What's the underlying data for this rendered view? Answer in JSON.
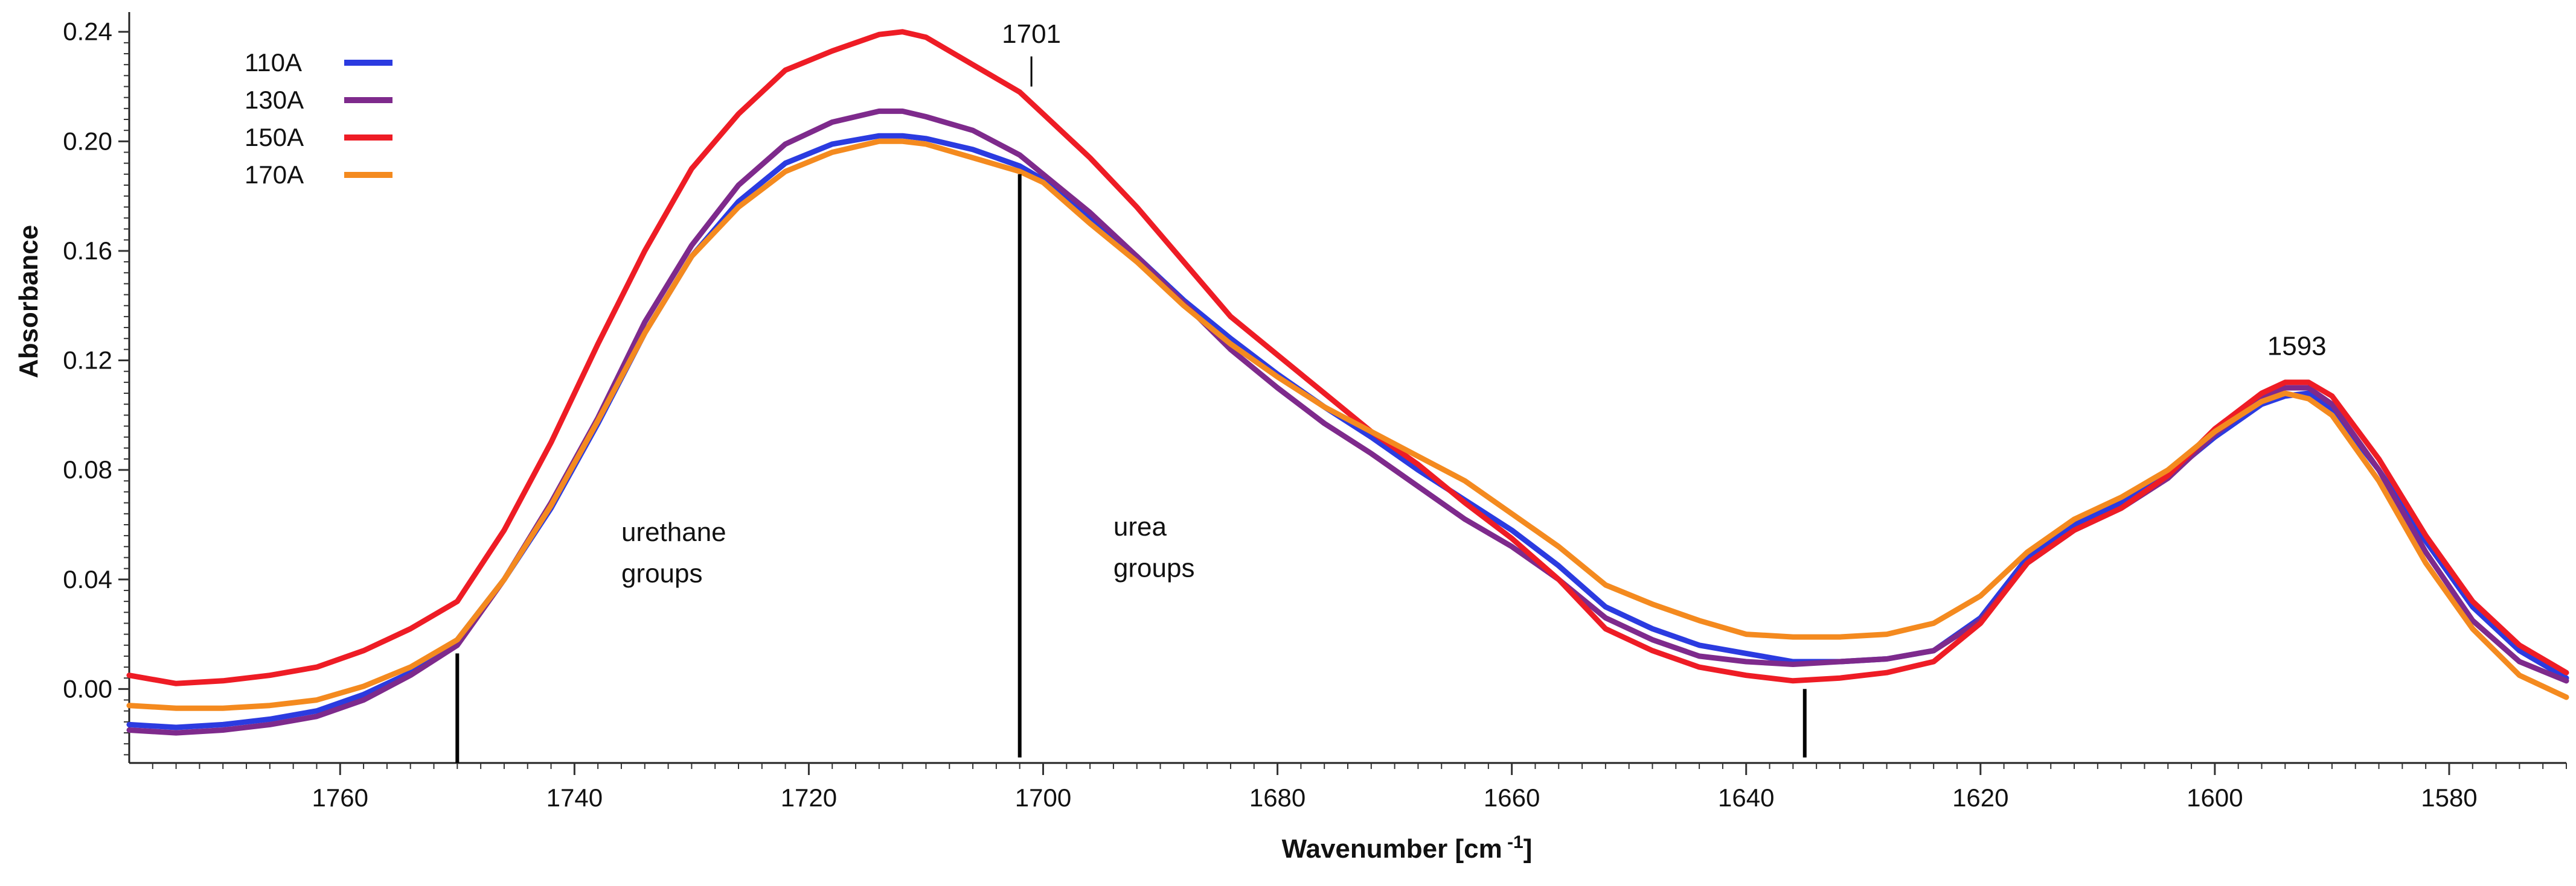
{
  "chart_data": {
    "type": "line",
    "title": "",
    "xlabel_main": "Wavenumber [cm",
    "xlabel_sup": " -1",
    "xlabel_close": "]",
    "ylabel": "Absorbance",
    "xlim": [
      1778,
      1570
    ],
    "ylim": [
      -0.027,
      0.245
    ],
    "x_ticks": [
      1760,
      1740,
      1720,
      1700,
      1680,
      1660,
      1640,
      1620,
      1600,
      1580
    ],
    "y_ticks": [
      "0.24",
      "0.20",
      "0.16",
      "0.12",
      "0.08",
      "0.04",
      "0.00"
    ],
    "y_tick_values": [
      0.24,
      0.2,
      0.16,
      0.12,
      0.08,
      0.04,
      0.0
    ],
    "x": [
      1778,
      1774,
      1770,
      1766,
      1762,
      1758,
      1754,
      1750,
      1746,
      1742,
      1738,
      1734,
      1730,
      1726,
      1722,
      1718,
      1714,
      1712,
      1710,
      1706,
      1702,
      1700,
      1696,
      1692,
      1688,
      1684,
      1680,
      1676,
      1672,
      1668,
      1664,
      1660,
      1656,
      1652,
      1648,
      1644,
      1640,
      1636,
      1632,
      1628,
      1624,
      1620,
      1616,
      1612,
      1608,
      1604,
      1600,
      1596,
      1594,
      1592,
      1590,
      1586,
      1582,
      1578,
      1574,
      1570
    ],
    "series": [
      {
        "name": "110A",
        "color": "#2b3be0",
        "values": [
          -0.013,
          -0.014,
          -0.013,
          -0.011,
          -0.008,
          -0.002,
          0.006,
          0.018,
          0.04,
          0.066,
          0.097,
          0.13,
          0.158,
          0.178,
          0.192,
          0.199,
          0.202,
          0.202,
          0.201,
          0.197,
          0.191,
          0.186,
          0.172,
          0.158,
          0.142,
          0.128,
          0.115,
          0.103,
          0.092,
          0.08,
          0.069,
          0.058,
          0.045,
          0.03,
          0.022,
          0.016,
          0.013,
          0.01,
          0.01,
          0.011,
          0.014,
          0.026,
          0.048,
          0.06,
          0.068,
          0.078,
          0.092,
          0.104,
          0.107,
          0.108,
          0.102,
          0.08,
          0.054,
          0.03,
          0.014,
          0.004
        ]
      },
      {
        "name": "130A",
        "color": "#7e2a8c",
        "values": [
          -0.015,
          -0.016,
          -0.015,
          -0.013,
          -0.01,
          -0.004,
          0.005,
          0.016,
          0.04,
          0.068,
          0.099,
          0.134,
          0.162,
          0.184,
          0.199,
          0.207,
          0.211,
          0.211,
          0.209,
          0.204,
          0.195,
          0.188,
          0.174,
          0.158,
          0.141,
          0.124,
          0.11,
          0.097,
          0.086,
          0.074,
          0.062,
          0.052,
          0.04,
          0.026,
          0.018,
          0.012,
          0.01,
          0.009,
          0.01,
          0.011,
          0.014,
          0.025,
          0.046,
          0.058,
          0.066,
          0.077,
          0.093,
          0.106,
          0.11,
          0.11,
          0.104,
          0.08,
          0.05,
          0.025,
          0.01,
          0.003
        ]
      },
      {
        "name": "150A",
        "color": "#ee1c25",
        "values": [
          0.005,
          0.002,
          0.003,
          0.005,
          0.008,
          0.014,
          0.022,
          0.032,
          0.058,
          0.09,
          0.126,
          0.16,
          0.19,
          0.21,
          0.226,
          0.233,
          0.239,
          0.24,
          0.238,
          0.228,
          0.218,
          0.21,
          0.194,
          0.176,
          0.156,
          0.136,
          0.122,
          0.108,
          0.094,
          0.082,
          0.068,
          0.055,
          0.04,
          0.022,
          0.014,
          0.008,
          0.005,
          0.003,
          0.004,
          0.006,
          0.01,
          0.024,
          0.046,
          0.058,
          0.066,
          0.078,
          0.095,
          0.108,
          0.112,
          0.112,
          0.107,
          0.084,
          0.056,
          0.032,
          0.016,
          0.006
        ]
      },
      {
        "name": "170A",
        "color": "#f48a1f",
        "values": [
          -0.006,
          -0.007,
          -0.007,
          -0.006,
          -0.004,
          0.001,
          0.008,
          0.018,
          0.04,
          0.067,
          0.098,
          0.13,
          0.158,
          0.176,
          0.189,
          0.196,
          0.2,
          0.2,
          0.199,
          0.194,
          0.189,
          0.185,
          0.17,
          0.156,
          0.14,
          0.126,
          0.114,
          0.103,
          0.094,
          0.085,
          0.076,
          0.064,
          0.052,
          0.038,
          0.031,
          0.025,
          0.02,
          0.019,
          0.019,
          0.02,
          0.024,
          0.034,
          0.05,
          0.062,
          0.07,
          0.08,
          0.094,
          0.105,
          0.108,
          0.106,
          0.1,
          0.076,
          0.046,
          0.022,
          0.005,
          -0.003
        ]
      }
    ],
    "markers": [
      {
        "x": 1750,
        "y_top": 0.013,
        "y_bottom": -0.027
      },
      {
        "x": 1702,
        "y_top": 0.188,
        "y_bottom": -0.025
      },
      {
        "x": 1635,
        "y_top": 0.0,
        "y_bottom": -0.025
      }
    ],
    "annotations": [
      {
        "text": "1701",
        "x": 1701,
        "y": 0.236,
        "leader": true,
        "leader_from": 0.231,
        "leader_to": 0.22
      },
      {
        "text": "1593",
        "x": 1593,
        "y": 0.122,
        "leader": false
      },
      {
        "text": "urethane",
        "x": 1736,
        "y": 0.054,
        "leader": false
      },
      {
        "text": "groups",
        "x": 1736,
        "y": 0.039,
        "leader": false
      },
      {
        "text": "urea",
        "x": 1694,
        "y": 0.056,
        "leader": false
      },
      {
        "text": "groups",
        "x": 1694,
        "y": 0.041,
        "leader": false
      }
    ],
    "legend": {
      "position": "top-left",
      "entries": [
        "110A",
        "130A",
        "150A",
        "170A"
      ]
    }
  }
}
